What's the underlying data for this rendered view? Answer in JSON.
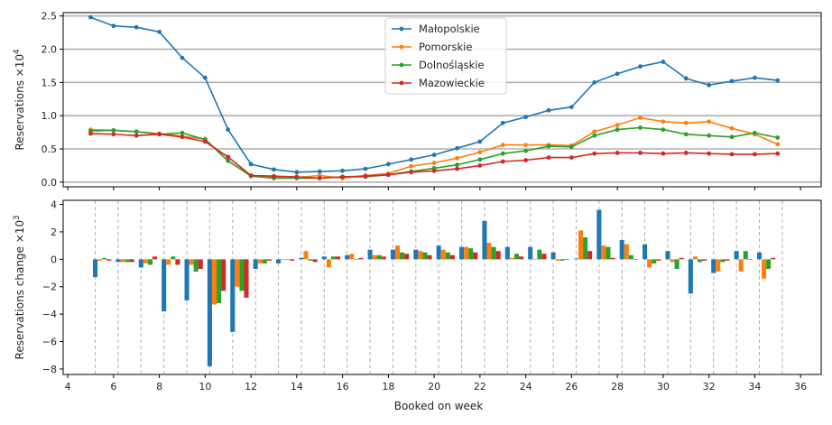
{
  "chart_data": [
    {
      "type": "line",
      "xlabel": "",
      "ylabel": "Reservations ×10",
      "ylabel_exp": "4",
      "ylim": [
        -0.07,
        2.55
      ],
      "yticks": [
        0.0,
        0.5,
        1.0,
        1.5,
        2.0,
        2.5
      ],
      "ytick_labels": [
        "0.0",
        "0.5",
        "1.0",
        "1.5",
        "2.0",
        "2.5"
      ],
      "grid": "horizontal",
      "legend_placement": "top-center",
      "x": [
        5,
        6,
        7,
        8,
        9,
        10,
        11,
        12,
        13,
        14,
        15,
        16,
        17,
        18,
        19,
        20,
        21,
        22,
        23,
        24,
        25,
        26,
        27,
        28,
        29,
        30,
        31,
        32,
        33,
        34,
        35
      ],
      "series": [
        {
          "name": "Małopolskie",
          "color": "#1f77b4",
          "values": [
            2.48,
            2.35,
            2.33,
            2.26,
            1.87,
            1.57,
            0.79,
            0.27,
            0.19,
            0.15,
            0.16,
            0.17,
            0.2,
            0.27,
            0.34,
            0.41,
            0.51,
            0.61,
            0.89,
            0.98,
            1.08,
            1.13,
            1.5,
            1.63,
            1.74,
            1.81,
            1.56,
            1.46,
            1.52,
            1.57,
            1.53
          ]
        },
        {
          "name": "Pomorskie",
          "color": "#ff7f0e",
          "values": [
            0.79,
            0.78,
            0.76,
            0.73,
            0.69,
            0.65,
            0.32,
            0.1,
            0.07,
            0.07,
            0.1,
            0.06,
            0.1,
            0.13,
            0.24,
            0.29,
            0.36,
            0.45,
            0.56,
            0.56,
            0.56,
            0.55,
            0.76,
            0.86,
            0.97,
            0.91,
            0.89,
            0.91,
            0.81,
            0.72,
            0.57
          ]
        },
        {
          "name": "Dolnośląskie",
          "color": "#2ca02c",
          "values": [
            0.77,
            0.78,
            0.76,
            0.72,
            0.74,
            0.64,
            0.32,
            0.09,
            0.06,
            0.06,
            0.06,
            0.08,
            0.08,
            0.11,
            0.16,
            0.21,
            0.26,
            0.34,
            0.43,
            0.47,
            0.54,
            0.53,
            0.7,
            0.79,
            0.82,
            0.79,
            0.72,
            0.7,
            0.68,
            0.74,
            0.67
          ]
        },
        {
          "name": "Mazowieckie",
          "color": "#d62728",
          "values": [
            0.73,
            0.72,
            0.7,
            0.72,
            0.68,
            0.61,
            0.38,
            0.1,
            0.09,
            0.08,
            0.06,
            0.08,
            0.09,
            0.11,
            0.15,
            0.17,
            0.2,
            0.25,
            0.31,
            0.33,
            0.37,
            0.37,
            0.43,
            0.44,
            0.44,
            0.43,
            0.44,
            0.43,
            0.42,
            0.42,
            0.43
          ]
        }
      ]
    },
    {
      "type": "bar",
      "xlabel": "Booked on week",
      "ylabel": "Reservations change ×10",
      "ylabel_exp": "3",
      "ylim": [
        -8.4,
        4.3
      ],
      "xlim": [
        3.8,
        36.9
      ],
      "yticks": [
        -8,
        -6,
        -4,
        -2,
        0,
        2,
        4
      ],
      "ytick_labels": [
        "−8",
        "−6",
        "−4",
        "−2",
        "0",
        "2",
        "4"
      ],
      "xticks": [
        4,
        6,
        8,
        10,
        12,
        14,
        16,
        18,
        20,
        22,
        24,
        26,
        28,
        30,
        32,
        34,
        36
      ],
      "xtick_labels": [
        "4",
        "6",
        "8",
        "10",
        "12",
        "14",
        "16",
        "18",
        "20",
        "22",
        "24",
        "26",
        "28",
        "30",
        "32",
        "34",
        "36"
      ],
      "grid": "vertical-dashed",
      "x": [
        5.5,
        6.5,
        7.5,
        8.5,
        9.5,
        10.5,
        11.5,
        12.5,
        13.5,
        14.5,
        15.5,
        16.5,
        17.5,
        18.5,
        19.5,
        20.5,
        21.5,
        22.5,
        23.5,
        24.5,
        25.5,
        26.5,
        27.5,
        28.5,
        29.5,
        30.5,
        31.5,
        32.5,
        33.5,
        34.5
      ],
      "series": [
        {
          "name": "Małopolskie",
          "color": "#1f77b4",
          "values": [
            -1.3,
            -0.2,
            -0.6,
            -3.8,
            -3.0,
            -7.8,
            -5.3,
            -0.7,
            -0.3,
            0.1,
            0.2,
            0.3,
            0.7,
            0.7,
            0.7,
            1.0,
            0.9,
            2.8,
            0.9,
            0.9,
            0.5,
            0.05,
            3.6,
            1.4,
            1.1,
            0.6,
            -2.5,
            -1.0,
            0.6,
            0.5
          ]
        },
        {
          "name": "Pomorskie",
          "color": "#ff7f0e",
          "values": [
            -0.1,
            -0.2,
            -0.3,
            -0.4,
            -0.4,
            -3.3,
            -2.0,
            -0.3,
            0.0,
            0.6,
            -0.6,
            0.4,
            0.3,
            1.0,
            0.6,
            0.7,
            0.9,
            1.2,
            0.1,
            0.0,
            -0.1,
            2.1,
            1.0,
            1.1,
            -0.6,
            -0.2,
            0.2,
            -0.9,
            -0.9,
            -1.4
          ]
        },
        {
          "name": "Dolnośląskie",
          "color": "#2ca02c",
          "values": [
            0.1,
            -0.2,
            -0.4,
            0.2,
            -0.9,
            -3.2,
            -2.3,
            -0.3,
            0.0,
            -0.1,
            0.2,
            0.0,
            0.3,
            0.5,
            0.5,
            0.5,
            0.8,
            0.9,
            0.4,
            0.7,
            -0.1,
            1.6,
            0.9,
            0.3,
            -0.3,
            -0.7,
            -0.2,
            -0.2,
            0.6,
            -0.7
          ]
        },
        {
          "name": "Mazowieckie",
          "color": "#d62728",
          "values": [
            -0.1,
            -0.2,
            0.2,
            -0.4,
            -0.7,
            -2.3,
            -2.8,
            -0.1,
            -0.1,
            -0.2,
            0.2,
            0.1,
            0.2,
            0.4,
            0.3,
            0.3,
            0.5,
            0.6,
            0.2,
            0.4,
            0.0,
            0.6,
            0.1,
            0.0,
            -0.1,
            0.1,
            -0.1,
            -0.1,
            0.0,
            0.1
          ]
        }
      ]
    }
  ]
}
